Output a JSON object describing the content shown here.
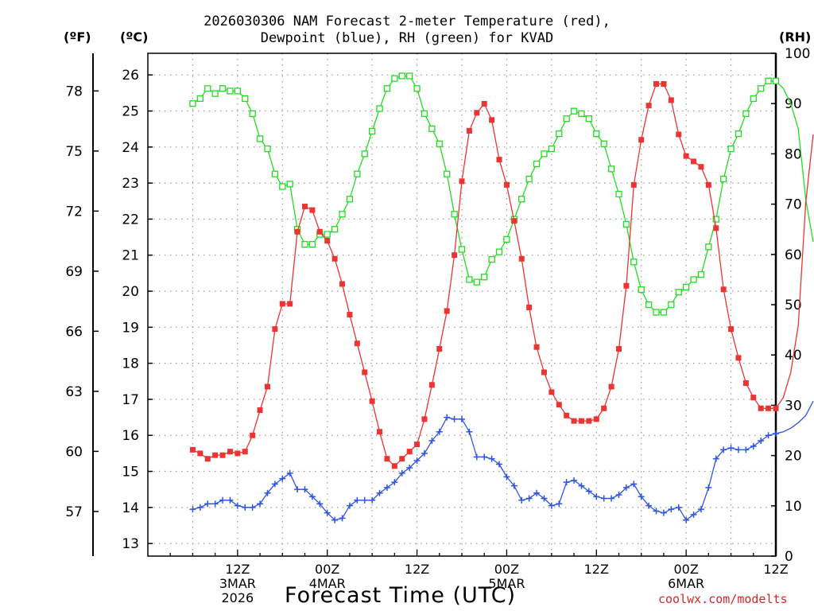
{
  "title": {
    "line1": "2026030306 NAM Forecast 2-meter Temperature (red),",
    "line2": "Dewpoint (blue), RH (green) for KVAD"
  },
  "units": {
    "f": "(ºF)",
    "c": "(ºC)",
    "rh": "(RH)"
  },
  "xlabel": "Forecast Time (UTC)",
  "credit": "coolwx.com/modelts",
  "colors": {
    "temperature": "#ee3333",
    "dewpoint": "#2e54e8",
    "rh": "#22dd22",
    "grid": "#999999"
  },
  "chart_data": {
    "type": "line",
    "x_unit": "forecast hour",
    "x_range": [
      -12,
      72
    ],
    "x_ticks": [
      {
        "x": 0,
        "labels": [
          "12Z",
          "3MAR",
          "2026"
        ]
      },
      {
        "x": 12,
        "labels": [
          "00Z",
          "4MAR"
        ]
      },
      {
        "x": 24,
        "labels": [
          "12Z"
        ]
      },
      {
        "x": 36,
        "labels": [
          "00Z",
          "5MAR"
        ]
      },
      {
        "x": 48,
        "labels": [
          "12Z"
        ]
      },
      {
        "x": 60,
        "labels": [
          "00Z",
          "6MAR"
        ]
      },
      {
        "x": 72,
        "labels": [
          "12Z"
        ]
      }
    ],
    "axes": {
      "celsius": {
        "range": [
          12.65,
          26.6
        ],
        "ticks": [
          13,
          14,
          15,
          16,
          17,
          18,
          19,
          20,
          21,
          22,
          23,
          24,
          25,
          26
        ]
      },
      "fahrenheit": {
        "ticks": [
          57,
          60,
          63,
          66,
          69,
          72,
          75,
          78
        ]
      },
      "rh": {
        "range": [
          0,
          100
        ],
        "ticks": [
          0,
          10,
          20,
          30,
          40,
          50,
          60,
          70,
          80,
          90,
          100
        ]
      }
    },
    "grid": true,
    "series": [
      {
        "key": "temperature",
        "marker": "filled-square",
        "axis": "celsius",
        "start_hour": -6,
        "values": [
          15.6,
          15.5,
          15.35,
          15.45,
          15.45,
          15.55,
          15.5,
          15.55,
          16.0,
          16.7,
          17.35,
          18.95,
          19.65,
          19.65,
          21.65,
          22.35,
          22.25,
          21.65,
          21.4,
          20.9,
          20.2,
          19.35,
          18.55,
          17.75,
          16.95,
          16.1,
          15.35,
          15.15,
          15.35,
          15.55,
          15.75,
          16.45,
          17.4,
          18.4,
          19.45,
          21.0,
          23.05,
          24.45,
          24.95,
          25.2,
          24.75,
          23.65,
          22.95,
          21.95,
          20.9,
          19.55,
          18.45,
          17.75,
          17.2,
          16.85,
          16.55,
          16.4,
          16.4,
          16.4,
          16.45,
          16.75,
          17.35,
          18.4,
          20.15,
          22.95,
          24.2,
          25.15,
          25.75,
          25.75,
          25.3,
          24.35,
          23.75,
          23.6,
          23.45,
          22.95,
          21.75,
          20.05,
          18.95,
          18.15,
          17.45,
          17.05,
          16.75,
          16.75,
          16.75,
          17.05,
          17.75,
          19.05,
          22.45,
          24.35
        ]
      },
      {
        "key": "dewpoint",
        "marker": "plus",
        "axis": "celsius",
        "start_hour": -6,
        "values": [
          13.95,
          14.0,
          14.1,
          14.1,
          14.2,
          14.2,
          14.05,
          14.0,
          14.0,
          14.1,
          14.4,
          14.65,
          14.8,
          14.95,
          14.5,
          14.5,
          14.3,
          14.1,
          13.85,
          13.65,
          13.7,
          14.05,
          14.2,
          14.2,
          14.2,
          14.4,
          14.55,
          14.7,
          14.95,
          15.1,
          15.3,
          15.5,
          15.85,
          16.1,
          16.5,
          16.45,
          16.45,
          16.1,
          15.4,
          15.4,
          15.35,
          15.2,
          14.85,
          14.6,
          14.2,
          14.25,
          14.4,
          14.25,
          14.05,
          14.1,
          14.7,
          14.75,
          14.6,
          14.45,
          14.3,
          14.25,
          14.25,
          14.35,
          14.55,
          14.65,
          14.3,
          14.05,
          13.9,
          13.85,
          13.95,
          14.0,
          13.65,
          13.8,
          13.95,
          14.55,
          15.35,
          15.6,
          15.65,
          15.6,
          15.6,
          15.7,
          15.85,
          16.0,
          16.05,
          16.1,
          16.2,
          16.35,
          16.55,
          16.95
        ]
      },
      {
        "key": "rh",
        "marker": "open-square",
        "axis": "rh",
        "start_hour": -6,
        "values": [
          90,
          91,
          93,
          92,
          93,
          92.5,
          92.5,
          91,
          88,
          83,
          81,
          76,
          73.5,
          74,
          65,
          62,
          62,
          64,
          64,
          65,
          68,
          71,
          76,
          80,
          84.5,
          89,
          93,
          95,
          95.5,
          95.5,
          93,
          88,
          85,
          82,
          76,
          68,
          61,
          55,
          54.5,
          55.5,
          59,
          60.5,
          63,
          67,
          71,
          75,
          78,
          80,
          81,
          84,
          87,
          88.5,
          88,
          87,
          84,
          82,
          77,
          72,
          66,
          58.5,
          53,
          50,
          48.5,
          48.5,
          50,
          52.5,
          53.5,
          55,
          56,
          61.5,
          67,
          75,
          81,
          84,
          88,
          91,
          93,
          94.5,
          94.5,
          93,
          90,
          85,
          71,
          62.5
        ]
      }
    ]
  }
}
